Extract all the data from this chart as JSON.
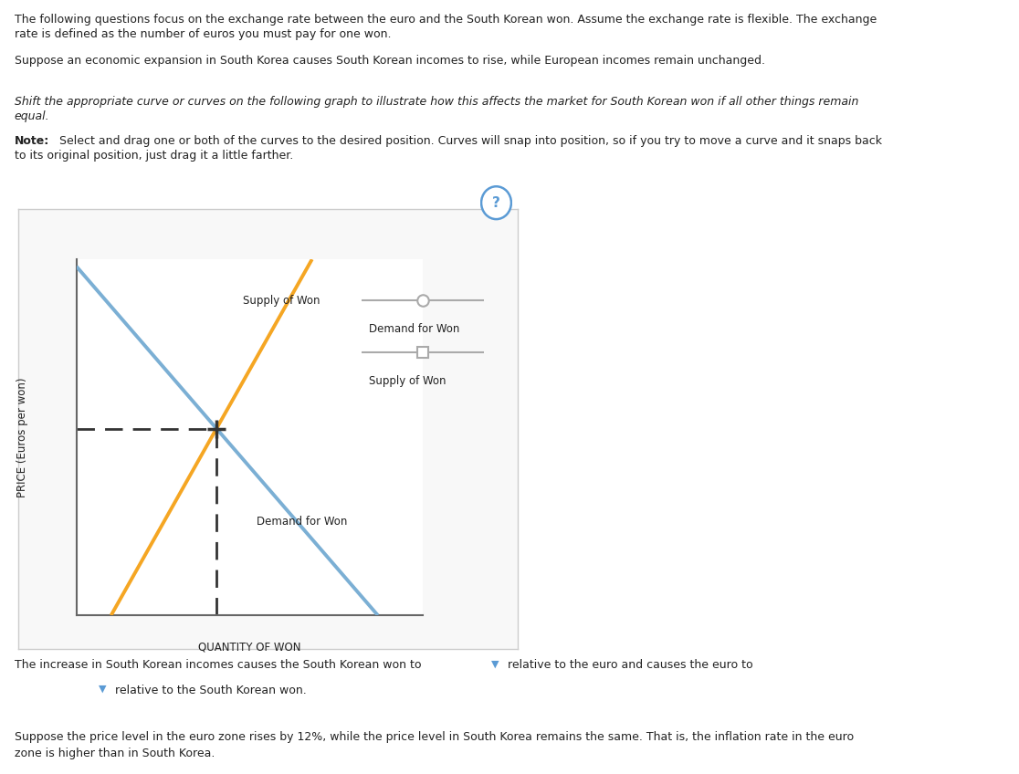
{
  "fig_width": 11.16,
  "fig_height": 8.48,
  "bg_color": "#ffffff",
  "panel_border_color": "#cccccc",
  "text_color": "#222222",
  "supply_color": "#f5a623",
  "demand_color": "#7bafd4",
  "dashed_color": "#333333",
  "ylabel": "PRICE (Euros per won)",
  "xlabel": "QUANTITY OF WON",
  "question_mark_color": "#5b9bd5",
  "legend_line_color": "#aaaaaa",
  "paragraph1": "The following questions focus on the exchange rate between the euro and the South Korean won. Assume the exchange rate is flexible. The exchange",
  "paragraph1b": "rate is defined as the number of euros you must pay for one won.",
  "paragraph2": "Suppose an economic expansion in South Korea causes South Korean incomes to rise, while European incomes remain unchanged.",
  "paragraph3a": "Shift the appropriate curve or curves on the following graph to illustrate how this affects the market for South Korean won if all other things remain",
  "paragraph3b": "equal.",
  "paragraph4a": " Select and drag one or both of the curves to the desired position. Curves will snap into position, so if you try to move a curve and it snaps back",
  "paragraph4b": "to its original position, just drag it a little farther.",
  "bottom1a": "The increase in South Korean incomes causes the South Korean won to",
  "bottom1b": "relative to the euro and causes the euro to",
  "bottom2a": "relative to the South Korean won.",
  "bottom3a": "Suppose the price level in the euro zone rises by 12%, while the price level in South Korea remains the same. That is, the inflation rate in the euro",
  "bottom3b": "zone is higher than in South Korea."
}
